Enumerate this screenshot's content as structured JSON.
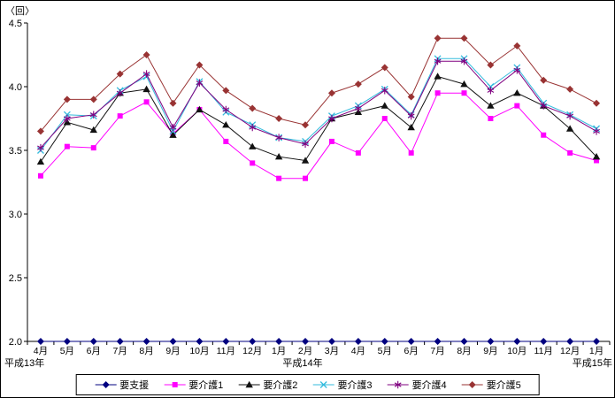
{
  "chart_data": {
    "type": "line",
    "title": "",
    "y_unit_label": "〈回〉",
    "ylim": [
      2.0,
      4.5
    ],
    "yticks": [
      2.0,
      2.5,
      3.0,
      3.5,
      4.0,
      4.5
    ],
    "grid": false,
    "legend_position": "bottom",
    "categories": [
      "4月",
      "5月",
      "6月",
      "7月",
      "8月",
      "9月",
      "10月",
      "11月",
      "12月",
      "1月",
      "2月",
      "3月",
      "4月",
      "5月",
      "6月",
      "7月",
      "8月",
      "9月",
      "10月",
      "11月",
      "12月",
      "1月"
    ],
    "era_labels": [
      {
        "label": "平成13年",
        "anchor": "left"
      },
      {
        "label": "平成14年",
        "anchor": "center"
      },
      {
        "label": "平成15年",
        "anchor": "right"
      }
    ],
    "series": [
      {
        "name": "要支援",
        "color": "#000080",
        "marker": "diamond",
        "values": [
          2.0,
          2.0,
          2.0,
          2.0,
          2.0,
          2.0,
          2.0,
          2.0,
          2.0,
          2.0,
          2.0,
          2.0,
          2.0,
          2.0,
          2.0,
          2.0,
          2.0,
          2.0,
          2.0,
          2.0,
          2.0,
          2.0
        ]
      },
      {
        "name": "要介護1",
        "color": "#FF00FF",
        "marker": "square",
        "values": [
          3.3,
          3.53,
          3.52,
          3.77,
          3.88,
          3.63,
          3.82,
          3.57,
          3.4,
          3.28,
          3.28,
          3.57,
          3.48,
          3.75,
          3.48,
          3.95,
          3.95,
          3.75,
          3.85,
          3.62,
          3.48,
          3.42
        ]
      },
      {
        "name": "要介護2",
        "color": "#111111",
        "marker": "triangle",
        "values": [
          3.41,
          3.72,
          3.66,
          3.95,
          3.98,
          3.62,
          3.82,
          3.7,
          3.53,
          3.45,
          3.42,
          3.75,
          3.8,
          3.85,
          3.68,
          4.08,
          4.02,
          3.85,
          3.95,
          3.85,
          3.67,
          3.45
        ]
      },
      {
        "name": "要介護3",
        "color": "#33BBDD",
        "marker": "x",
        "values": [
          3.5,
          3.78,
          3.77,
          3.97,
          4.08,
          3.65,
          4.04,
          3.8,
          3.7,
          3.6,
          3.57,
          3.77,
          3.85,
          3.98,
          3.78,
          4.22,
          4.22,
          4.0,
          4.15,
          3.87,
          3.78,
          3.67
        ]
      },
      {
        "name": "要介護4",
        "color": "#800080",
        "marker": "star",
        "values": [
          3.52,
          3.75,
          3.78,
          3.95,
          4.1,
          3.68,
          4.03,
          3.82,
          3.68,
          3.6,
          3.55,
          3.75,
          3.83,
          3.97,
          3.77,
          4.2,
          4.2,
          3.97,
          4.13,
          3.85,
          3.77,
          3.65
        ]
      },
      {
        "name": "要介護5",
        "color": "#993333",
        "marker": "diamond",
        "values": [
          3.65,
          3.9,
          3.9,
          4.1,
          4.25,
          3.87,
          4.17,
          3.97,
          3.83,
          3.75,
          3.7,
          3.95,
          4.02,
          4.15,
          3.92,
          4.38,
          4.38,
          4.17,
          4.32,
          4.05,
          3.98,
          3.87
        ]
      }
    ]
  }
}
